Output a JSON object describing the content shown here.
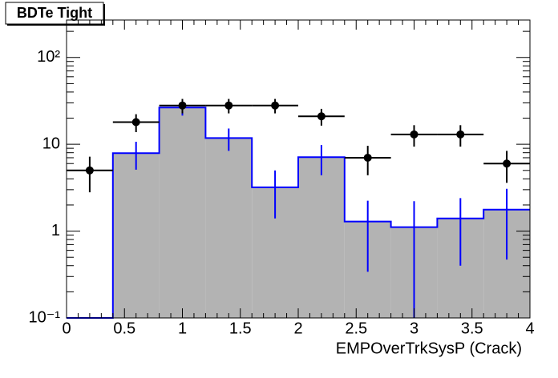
{
  "chart_data": {
    "type": "histogram",
    "title": "BDTe Tight",
    "x_label": "EMPOverTrkSysP (Crack)",
    "bins": [
      0,
      0.4,
      0.8,
      1.2,
      1.6,
      2.0,
      2.4,
      2.8,
      3.2,
      3.6,
      4.0
    ],
    "log_y": true,
    "xlim": [
      0,
      4
    ],
    "xticks": [
      0,
      0.5,
      1,
      1.5,
      2,
      2.5,
      3,
      3.5,
      4
    ],
    "ylim": [
      0.1,
      270
    ],
    "yticks": [
      {
        "value": 0.1,
        "label": "10⁻¹"
      },
      1,
      10,
      {
        "value": 100,
        "label": "10²"
      }
    ],
    "series": [
      {
        "color": "#0000ff",
        "fill": "#b3b3b3",
        "values": [
          0.1,
          7.9,
          26.5,
          11.8,
          3.2,
          7.1,
          1.29,
          1.11,
          1.4,
          1.77
        ],
        "errors": [
          0,
          2.8,
          5.1,
          3.4,
          1.8,
          2.7,
          0.95,
          1.1,
          1.0,
          1.3
        ]
      },
      {
        "color": "#000000",
        "x": [
          0.2,
          0.6,
          1.0,
          1.4,
          1.8,
          2.2,
          2.6,
          3.0,
          3.4,
          3.8
        ],
        "values": [
          5,
          18,
          28,
          28,
          28,
          21,
          7,
          13,
          13,
          6
        ],
        "errors": [
          2.2,
          4.2,
          5.3,
          5.3,
          5.3,
          4.6,
          2.6,
          3.6,
          3.6,
          2.4
        ],
        "xerr": 0.2
      }
    ]
  }
}
